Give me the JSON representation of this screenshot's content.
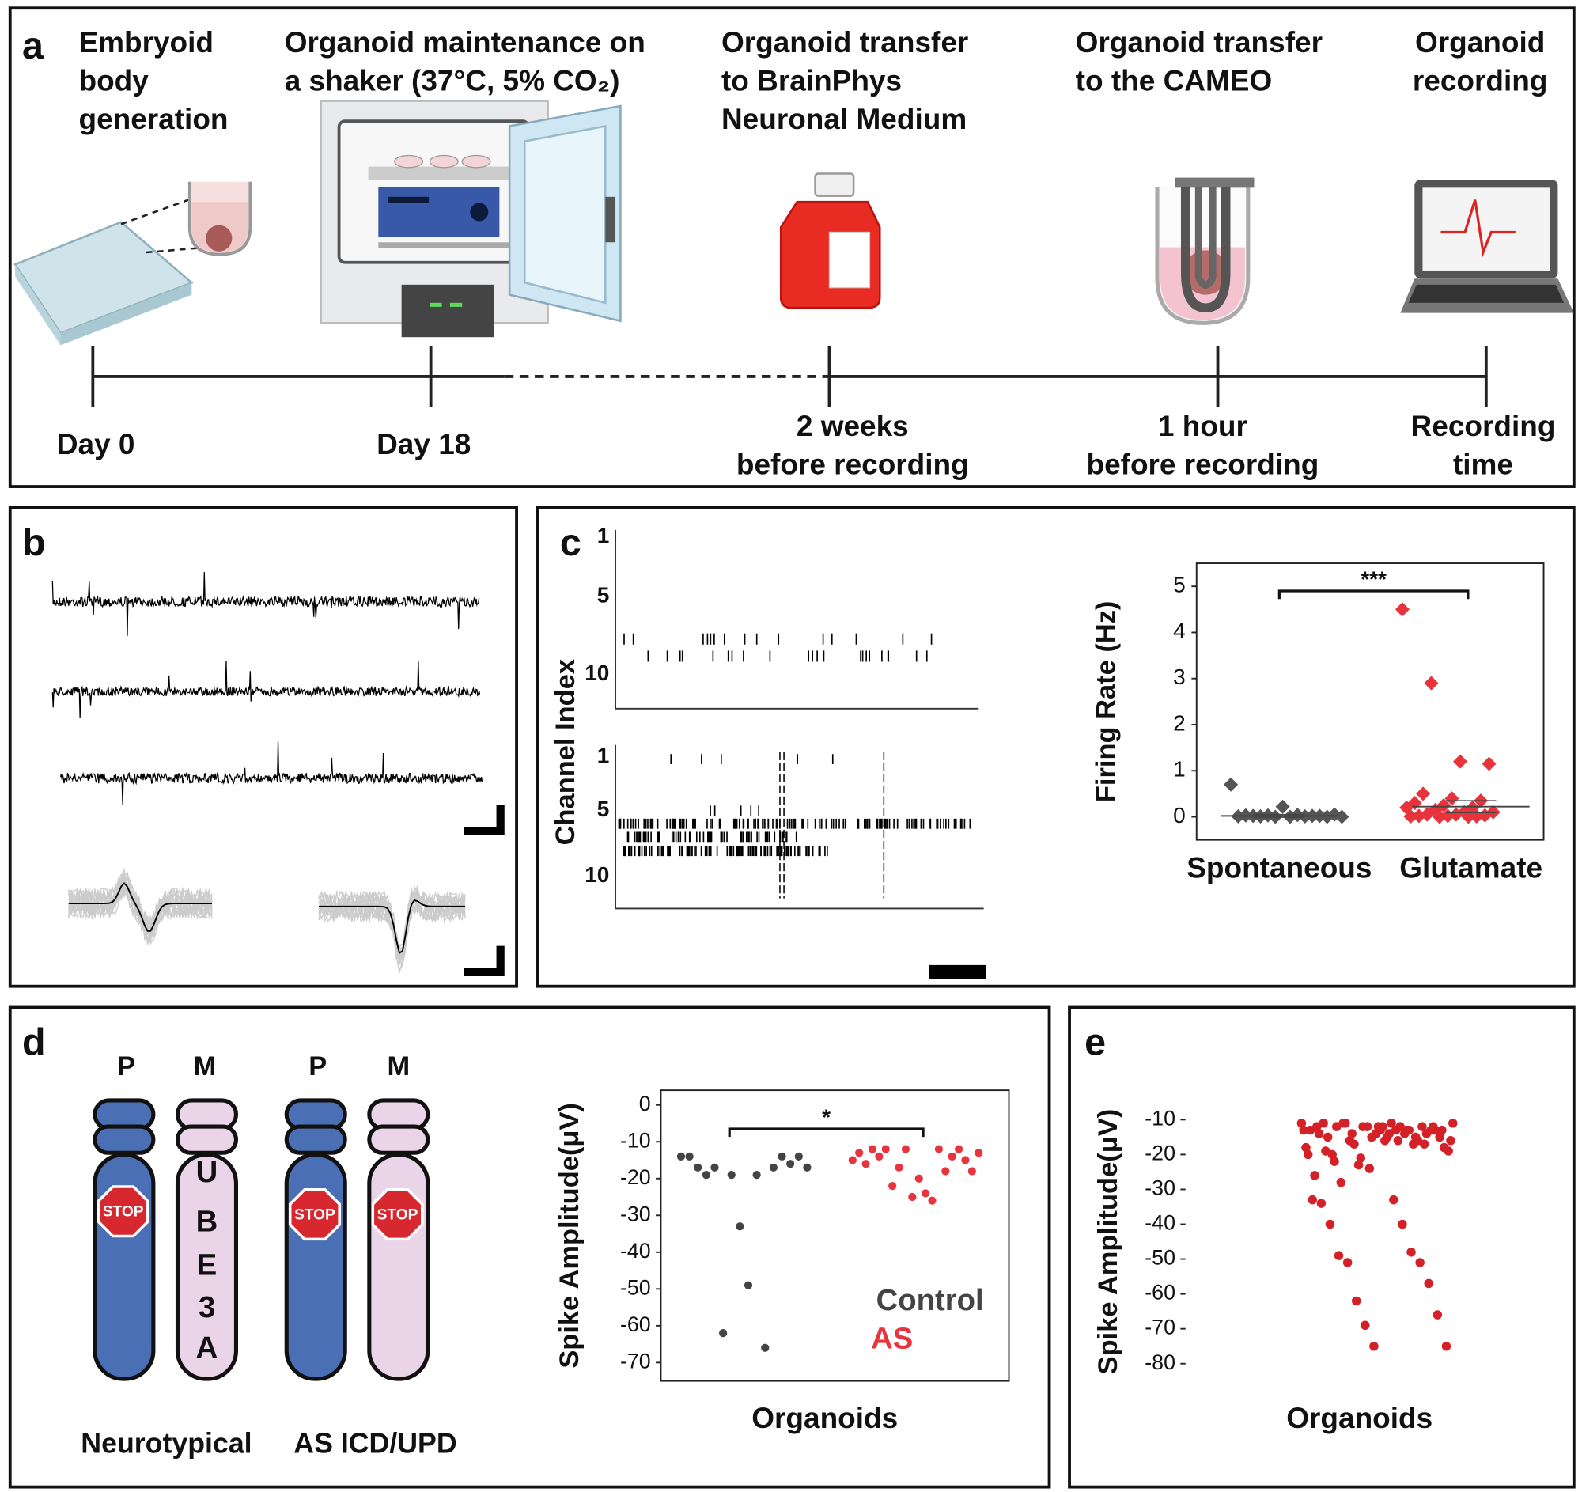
{
  "panel_labels": [
    "a",
    "b",
    "c",
    "d",
    "e"
  ],
  "timeline": {
    "steps": [
      {
        "title": [
          "Embryoid",
          "body",
          "generation"
        ],
        "time": [
          "Day 0"
        ]
      },
      {
        "title": [
          "Organoid maintenance on",
          "a shaker (37°C, 5% CO₂)"
        ],
        "time": [
          "Day 18"
        ]
      },
      {
        "title": [
          "Organoid transfer",
          "to BrainPhys",
          "Neuronal Medium"
        ],
        "time": [
          "2 weeks",
          "before recording"
        ]
      },
      {
        "title": [
          "Organoid transfer",
          "to the CAMEO"
        ],
        "time": [
          "1 hour",
          "before recording"
        ]
      },
      {
        "title": [
          "Organoid",
          "recording"
        ],
        "time": [
          "Recording",
          "time"
        ]
      }
    ]
  },
  "raster": {
    "ylabel": "Channel Index",
    "top_ticks": [
      "1",
      "5",
      "10"
    ],
    "bottom_ticks": [
      "1",
      "5",
      "10"
    ]
  },
  "chromosomes": {
    "labels": [
      "P",
      "M",
      "P",
      "M"
    ],
    "gene": [
      "U",
      "B",
      "E",
      "3",
      "A"
    ],
    "stop": "STOP",
    "groups": [
      "Neurotypical",
      "AS ICD/UPD"
    ]
  },
  "chart_data": [
    {
      "type": "strip",
      "ylabel": "Firing Rate (Hz)",
      "categories": [
        "Spontaneous",
        "Glutamate"
      ],
      "series": [
        {
          "name": "Spontaneous",
          "color": "#555555",
          "values": [
            0.7,
            0.22,
            0.05,
            0.03,
            0.02,
            0.02,
            0.01,
            0.01,
            0,
            0,
            0,
            0,
            0.01,
            0.02,
            0.03,
            0.04
          ]
        },
        {
          "name": "Glutamate",
          "color": "#e8323c",
          "values": [
            4.5,
            2.9,
            1.2,
            1.15,
            0.5,
            0.4,
            0.35,
            0.3,
            0.25,
            0.2,
            0.2,
            0.15,
            0.1,
            0.1,
            0.05,
            0.05,
            0.03,
            0.02,
            0.02,
            0.01,
            0.01,
            0,
            0
          ]
        }
      ],
      "means": [
        0.02,
        0.22
      ],
      "errors": [
        0.03,
        0.13
      ],
      "significance": {
        "label": "***",
        "y": 4.9
      },
      "ylim": [
        -0.5,
        5.5
      ],
      "yticks": [
        0,
        1,
        2,
        3,
        4,
        5
      ]
    },
    {
      "type": "strip",
      "ylabel": "Spike Amplitude(μV)",
      "xlabel": "Organoids",
      "series": [
        {
          "name": "Control",
          "color": "#444444",
          "values": [
            -14,
            -14,
            -17,
            -19,
            -17,
            -62,
            -19,
            -33,
            -49,
            -19,
            -66,
            -17,
            -14,
            -16,
            -14,
            -17
          ]
        },
        {
          "name": "AS",
          "color": "#e8343f",
          "values": [
            -15,
            -13,
            -16,
            -12,
            -14,
            -12,
            -22,
            -17,
            -12,
            -25,
            -20,
            -24,
            -26,
            -12,
            -18,
            -14,
            -12,
            -15,
            -18,
            -13
          ]
        }
      ],
      "significance": {
        "label": "*",
        "y": -6.5
      },
      "ylim": [
        -75,
        4
      ],
      "yticks": [
        0,
        -10,
        -20,
        -30,
        -40,
        -50,
        -60,
        -70
      ]
    },
    {
      "type": "strip",
      "ylabel": "Spike Amplitude(μV)",
      "xlabel": "Organoids",
      "series": [
        {
          "color": "#d42027",
          "values": [
            -11,
            -12,
            -13,
            -11,
            -14,
            -12,
            -15,
            -13,
            -12,
            -16,
            -11,
            -14,
            -17,
            -13,
            -12,
            -18,
            -15,
            -11,
            -13,
            -20,
            -14,
            -12,
            -16,
            -19,
            -13,
            -22,
            -15,
            -11,
            -17,
            -14,
            -12,
            -21,
            -13,
            -24,
            -16,
            -12,
            -18,
            -15,
            -26,
            -13,
            -11,
            -14,
            -20,
            -17,
            -28,
            -12,
            -16,
            -13,
            -23,
            -15,
            -12,
            -19,
            -14,
            -13,
            -16,
            -33,
            -33,
            -34,
            -40,
            -40,
            -48,
            -49,
            -51,
            -51,
            -57,
            -62,
            -66,
            -69,
            -75,
            -75
          ]
        }
      ],
      "ylim": [
        -87,
        -3
      ],
      "yticks": [
        -10,
        -20,
        -30,
        -40,
        -50,
        -60,
        -70,
        -80
      ]
    }
  ]
}
